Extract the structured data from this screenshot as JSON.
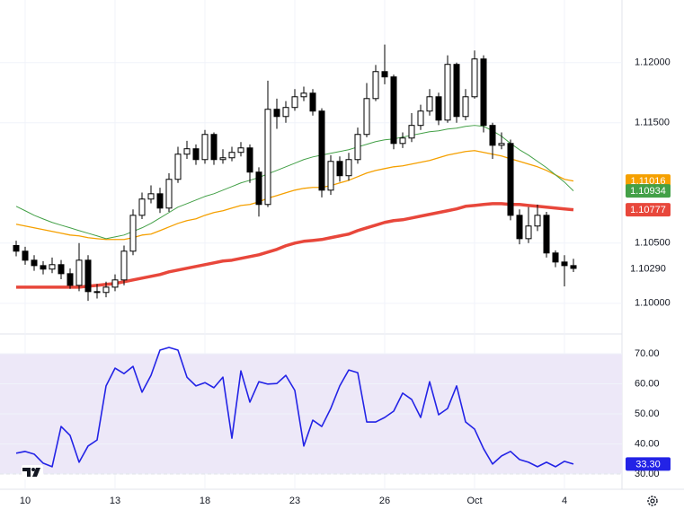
{
  "chart_data": [
    {
      "type": "candlestick",
      "categories": [
        null,
        "10",
        null,
        null,
        null,
        null,
        null,
        null,
        null,
        null,
        null,
        "13",
        null,
        null,
        null,
        null,
        null,
        null,
        null,
        null,
        null,
        "18",
        null,
        null,
        null,
        null,
        null,
        null,
        null,
        null,
        null,
        "23",
        null,
        null,
        null,
        null,
        null,
        null,
        null,
        null,
        null,
        "26",
        null,
        null,
        null,
        null,
        null,
        null,
        null,
        null,
        null,
        "Oct",
        null,
        null,
        null,
        null,
        null,
        null,
        null,
        null,
        null,
        "4",
        null
      ],
      "open": [
        1.1048,
        1.10433,
        1.10358,
        1.10313,
        1.10284,
        1.10321,
        1.10246,
        1.10149,
        1.10358,
        1.10097,
        1.1009,
        1.10134,
        1.10194,
        1.10433,
        1.10731,
        1.10866,
        1.1091,
        1.10791,
        1.1103,
        1.11239,
        1.11284,
        1.11194,
        1.11403,
        1.11194,
        1.11209,
        1.11254,
        1.11291,
        1.1109,
        1.10821,
        1.11612,
        1.11552,
        1.11627,
        1.11716,
        1.11746,
        1.11597,
        1.1094,
        1.11179,
        1.1106,
        1.11194,
        1.11403,
        1.11701,
        1.11925,
        1.11881,
        1.11328,
        1.11373,
        1.11478,
        1.11597,
        1.11716,
        1.11522,
        1.11985,
        1.11552,
        1.11716,
        1.1203,
        1.11478,
        1.11313,
        1.11328,
        1.10731,
        1.10537,
        1.10642,
        1.10731,
        1.10418,
        1.10343,
        1.10313
      ],
      "high": [
        1.1052,
        1.1047,
        1.104,
        1.1035,
        1.1038,
        1.1036,
        1.1029,
        1.105,
        1.104,
        1.1016,
        1.1018,
        1.1024,
        1.1048,
        1.1078,
        1.1092,
        1.1098,
        1.1096,
        1.1108,
        1.113,
        1.1135,
        1.1132,
        1.1144,
        1.1142,
        1.1128,
        1.113,
        1.1134,
        1.1132,
        1.1113,
        1.1185,
        1.117,
        1.1168,
        1.1178,
        1.118,
        1.1178,
        1.1162,
        1.1123,
        1.1122,
        1.1125,
        1.1146,
        1.1183,
        1.1198,
        1.1215,
        1.119,
        1.1142,
        1.1158,
        1.1165,
        1.1178,
        1.1175,
        1.1206,
        1.12,
        1.1178,
        1.121,
        1.1206,
        1.115,
        1.1142,
        1.1136,
        1.1078,
        1.108,
        1.1082,
        1.1076,
        1.1044,
        1.104,
        1.1037
      ],
      "low": [
        1.1039,
        1.1032,
        1.1027,
        1.1024,
        1.1025,
        1.102,
        1.1012,
        1.101,
        1.1002,
        1.1004,
        1.1005,
        1.101,
        1.1015,
        1.104,
        1.107,
        1.1083,
        1.1075,
        1.1076,
        1.11,
        1.112,
        1.1115,
        1.1116,
        1.1115,
        1.1116,
        1.1118,
        1.1122,
        1.11,
        1.1072,
        1.108,
        1.1145,
        1.115,
        1.116,
        1.1168,
        1.1156,
        1.1088,
        1.109,
        1.1101,
        1.1102,
        1.1116,
        1.1138,
        1.1168,
        1.1182,
        1.1128,
        1.1129,
        1.1134,
        1.1144,
        1.1156,
        1.1148,
        1.115,
        1.115,
        1.1152,
        1.117,
        1.1142,
        1.112,
        1.1128,
        1.1069,
        1.1049,
        1.105,
        1.106,
        1.1038,
        1.103,
        1.1014,
        1.1026
      ],
      "close": [
        1.10433,
        1.10358,
        1.10313,
        1.10284,
        1.10321,
        1.10246,
        1.10149,
        1.10358,
        1.10097,
        1.1009,
        1.10134,
        1.10194,
        1.10433,
        1.10731,
        1.10866,
        1.1091,
        1.10791,
        1.1103,
        1.11239,
        1.11284,
        1.11194,
        1.11403,
        1.11194,
        1.11209,
        1.11254,
        1.11291,
        1.1109,
        1.10821,
        1.11612,
        1.11552,
        1.11627,
        1.11716,
        1.11746,
        1.11597,
        1.1094,
        1.11179,
        1.1106,
        1.11194,
        1.11403,
        1.11701,
        1.11925,
        1.11881,
        1.11328,
        1.11373,
        1.11478,
        1.11597,
        1.11716,
        1.11522,
        1.11985,
        1.11552,
        1.11716,
        1.1203,
        1.11478,
        1.11313,
        1.11328,
        1.10731,
        1.10537,
        1.10642,
        1.10731,
        1.10418,
        1.10343,
        1.10313,
        1.1029
      ],
      "last_label": "1.10290",
      "up_color": "#ffffff",
      "down_color": "#000000",
      "outline_color": "#000000",
      "series": [
        {
          "color": "#f5a000",
          "width": 1.3,
          "values": [
            1.10657,
            1.10642,
            1.10627,
            1.10612,
            1.10597,
            1.10582,
            1.10567,
            1.1056,
            1.10545,
            1.10537,
            1.1053,
            1.1053,
            1.1053,
            1.10545,
            1.10567,
            1.10575,
            1.10604,
            1.10634,
            1.10664,
            1.10687,
            1.10702,
            1.10731,
            1.10754,
            1.10769,
            1.10791,
            1.10813,
            1.10821,
            1.10843,
            1.10873,
            1.10895,
            1.10918,
            1.1094,
            1.10955,
            1.10963,
            1.10963,
            1.10978,
            1.11,
            1.11022,
            1.11052,
            1.11082,
            1.11104,
            1.11119,
            1.11134,
            1.11142,
            1.11157,
            1.11172,
            1.11187,
            1.11209,
            1.11231,
            1.11246,
            1.11261,
            1.11269,
            1.11254,
            1.11239,
            1.11224,
            1.11201,
            1.11179,
            1.11157,
            1.11134,
            1.11104,
            1.11067,
            1.1103,
            1.11016
          ]
        },
        {
          "color": "#43a047",
          "width": 1,
          "values": [
            1.10806,
            1.10769,
            1.10731,
            1.10701,
            1.10672,
            1.10649,
            1.10627,
            1.10604,
            1.10582,
            1.1056,
            1.10537,
            1.10552,
            1.10567,
            1.10597,
            1.10627,
            1.10664,
            1.10709,
            1.10754,
            1.10799,
            1.10828,
            1.10858,
            1.10888,
            1.1091,
            1.1094,
            1.1097,
            1.11,
            1.11022,
            1.11045,
            1.11075,
            1.11104,
            1.11134,
            1.11164,
            1.11194,
            1.11216,
            1.11231,
            1.11246,
            1.11261,
            1.11276,
            1.11299,
            1.11321,
            1.11343,
            1.11358,
            1.11366,
            1.11381,
            1.11396,
            1.1141,
            1.11425,
            1.11433,
            1.11448,
            1.11455,
            1.1147,
            1.11478,
            1.1147,
            1.11433,
            1.11388,
            1.11328,
            1.11276,
            1.11231,
            1.11179,
            1.11127,
            1.11067,
            1.11007,
            1.10934
          ]
        },
        {
          "color": "#e8473b",
          "width": 3.5,
          "values": [
            1.10134,
            1.10134,
            1.10134,
            1.10134,
            1.10134,
            1.10134,
            1.10134,
            1.10134,
            1.10142,
            1.10149,
            1.10157,
            1.10164,
            1.10179,
            1.10194,
            1.10209,
            1.10224,
            1.10239,
            1.10261,
            1.10276,
            1.10291,
            1.10306,
            1.10321,
            1.10336,
            1.10351,
            1.10358,
            1.10373,
            1.10388,
            1.10403,
            1.10425,
            1.10448,
            1.10478,
            1.105,
            1.10515,
            1.10522,
            1.1053,
            1.10545,
            1.1056,
            1.10575,
            1.10604,
            1.10627,
            1.10649,
            1.10672,
            1.10687,
            1.10694,
            1.10709,
            1.10724,
            1.10739,
            1.10754,
            1.10769,
            1.10784,
            1.10806,
            1.10813,
            1.10821,
            1.10828,
            1.10828,
            1.10821,
            1.10821,
            1.10813,
            1.10806,
            1.10799,
            1.10791,
            1.10784,
            1.10777
          ]
        }
      ],
      "ylim": [
        1.0976,
        1.1252
      ],
      "yticks": [
        {
          "value": 1.1,
          "label": "1.10000"
        },
        {
          "value": 1.105,
          "label": "1.10500"
        },
        {
          "value": 1.115,
          "label": "1.11500"
        },
        {
          "value": 1.12,
          "label": "1.12000"
        }
      ],
      "grid": true
    },
    {
      "type": "line",
      "series": [
        {
          "color": "#2323e6",
          "values": [
            36.9,
            37.5,
            36.6,
            33.6,
            32.4,
            45.8,
            42.8,
            33.9,
            39.3,
            41.3,
            59.3,
            65.2,
            63.4,
            65.8,
            57.2,
            62.8,
            71.2,
            72.1,
            71.2,
            62.2,
            59.3,
            60.4,
            58.7,
            62.2,
            41.9,
            64.3,
            53.9,
            60.7,
            59.9,
            60.1,
            62.8,
            57.8,
            39.3,
            47.9,
            45.8,
            51.8,
            59.3,
            64.6,
            63.7,
            47.3,
            47.3,
            48.8,
            50.9,
            56.9,
            54.8,
            48.8,
            60.7,
            49.7,
            51.8,
            59.3,
            47.3,
            44.9,
            38.4,
            33.3,
            36.0,
            37.5,
            34.8,
            33.9,
            32.4,
            33.9,
            32.4,
            34.2,
            33.3
          ],
          "last_label": "33.30"
        }
      ],
      "band": [
        30,
        70
      ],
      "band_color": "#ede8f8",
      "ylim": [
        24.9,
        74.2
      ],
      "yticks": [
        {
          "value": 30,
          "label": "30.00"
        },
        {
          "value": 40,
          "label": "40.00"
        },
        {
          "value": 50,
          "label": "50.00"
        },
        {
          "value": 60,
          "label": "60.00"
        },
        {
          "value": 70,
          "label": "70.00"
        }
      ],
      "grid": true
    }
  ]
}
